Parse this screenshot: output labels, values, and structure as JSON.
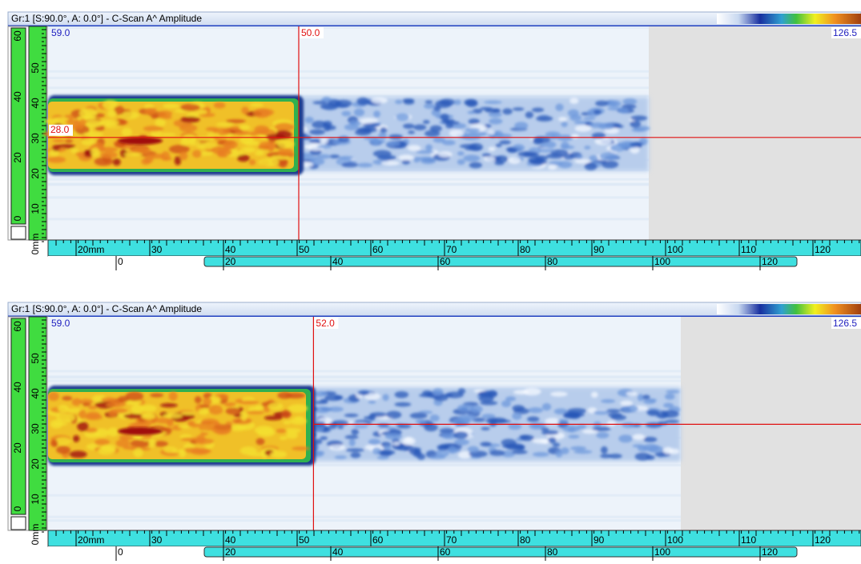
{
  "panels": [
    {
      "title": "Gr:1 [S:90.0°, A: 0.0°] - C-Scan A^ Amplitude",
      "top_value": "59.0",
      "max_value": "126.5",
      "cursor_x": {
        "value": 50,
        "label": "50.0"
      },
      "cursor_y": {
        "value": 28,
        "label": "28.0"
      },
      "scan_ruler": [
        "20mm",
        "30",
        "40",
        "50",
        "60",
        "70",
        "80",
        "90",
        "100",
        "110",
        "120"
      ],
      "index_ruler": [
        "0",
        "20",
        "40",
        "60",
        "80",
        "100",
        "120"
      ],
      "vertical_ruler": [
        "50",
        "40",
        "30",
        "20",
        "10",
        "0mm"
      ],
      "gate_ruler": [
        "60",
        "40",
        "20",
        "0"
      ]
    },
    {
      "title": "Gr:1 [S:90.0°, A: 0.0°] - C-Scan A^ Amplitude",
      "top_value": "59.0",
      "max_value": "126.5",
      "cursor_x": {
        "value": 52,
        "label": "52.0"
      },
      "cursor_y": 29,
      "scan_ruler": [
        "20mm",
        "30",
        "40",
        "50",
        "60",
        "70",
        "80",
        "90",
        "100",
        "110",
        "120"
      ],
      "index_ruler": [
        "0",
        "20",
        "40",
        "60",
        "80",
        "100",
        "120"
      ],
      "vertical_ruler": [
        "50",
        "40",
        "30",
        "20",
        "10",
        "0mm"
      ],
      "gate_ruler": [
        "60",
        "40",
        "20",
        "0"
      ]
    }
  ]
}
